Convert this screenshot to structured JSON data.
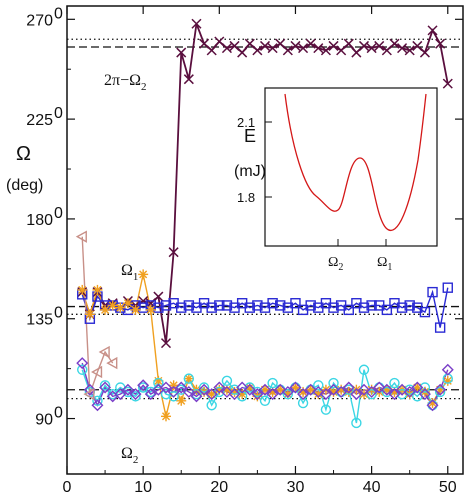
{
  "chart_data": {
    "type": "line",
    "xlim": [
      0,
      52
    ],
    "ylim": [
      65,
      276
    ],
    "x_ticks": [
      "0",
      "10",
      "20",
      "30",
      "40",
      "50"
    ],
    "y_ticks": [
      {
        "value": 90,
        "label": "90",
        "sup": "0"
      },
      {
        "value": 135,
        "label": "135",
        "sup": "0"
      },
      {
        "value": 180,
        "label": "180",
        "sup": "0"
      },
      {
        "value": 225,
        "label": "225",
        "sup": "0"
      },
      {
        "value": 270,
        "label": "270",
        "sup": "0"
      }
    ],
    "ylabel": {
      "symbol": "Ω",
      "unit": "(deg)"
    },
    "annotations": {
      "top": {
        "main": "2π−Ω",
        "sub": "2"
      },
      "omega1": {
        "main": "Ω",
        "sub": "1"
      },
      "omega2": {
        "main": "Ω",
        "sub": "2"
      }
    },
    "reference_lines": [
      {
        "y": 261,
        "style": "dotted"
      },
      {
        "y": 257.5,
        "style": "dashed"
      },
      {
        "y": 140.5,
        "style": "dashed"
      },
      {
        "y": 137,
        "style": "dotted"
      },
      {
        "y": 103,
        "style": "dashed"
      },
      {
        "y": 99,
        "style": "dotted"
      }
    ],
    "series": [
      {
        "color": "#5a0f3e",
        "marker": "x",
        "x": [
          2,
          3,
          4,
          5,
          6,
          7,
          8,
          9,
          10,
          11,
          12,
          13,
          14,
          15,
          16,
          17,
          18,
          19,
          20,
          21,
          22,
          23,
          24,
          25,
          26,
          27,
          28,
          29,
          30,
          31,
          32,
          33,
          34,
          35,
          36,
          37,
          38,
          39,
          40,
          41,
          42,
          43,
          44,
          45,
          46,
          47,
          48,
          49,
          50
        ],
        "y": [
          147,
          137,
          147,
          141,
          142,
          140,
          143,
          141,
          143,
          142,
          145,
          124,
          165,
          255,
          243,
          268,
          259,
          256,
          260,
          257,
          258,
          255,
          259,
          256,
          258,
          257,
          259,
          256,
          258,
          257,
          259,
          257,
          256,
          258,
          256,
          259,
          255,
          258,
          257,
          258,
          256,
          259,
          257,
          256,
          258,
          255,
          265,
          259,
          241
        ]
      },
      {
        "color": "#2a2ad4",
        "marker": "square",
        "x": [
          2,
          3,
          4,
          5,
          6,
          7,
          8,
          9,
          10,
          11,
          12,
          13,
          14,
          15,
          16,
          17,
          18,
          19,
          20,
          21,
          22,
          23,
          24,
          25,
          26,
          27,
          28,
          29,
          30,
          31,
          32,
          33,
          34,
          35,
          36,
          37,
          38,
          39,
          40,
          41,
          42,
          43,
          44,
          45,
          46,
          47,
          48,
          49,
          50
        ],
        "y": [
          146,
          135,
          145,
          141,
          141,
          140,
          139,
          141,
          140,
          141,
          140,
          141,
          142,
          140,
          141,
          140,
          142,
          140,
          141,
          141,
          140,
          142,
          140,
          141,
          140,
          142,
          141,
          140,
          142,
          139,
          141,
          140,
          142,
          140,
          141,
          139,
          142,
          140,
          141,
          141,
          139,
          142,
          140,
          141,
          140,
          138,
          147,
          131,
          149
        ]
      },
      {
        "color": "#f0a020",
        "marker": "asterisk",
        "x": [
          2,
          3,
          4,
          5,
          6,
          7,
          8,
          9,
          10,
          11,
          12,
          13,
          14,
          15,
          16,
          17,
          18,
          19,
          20,
          21,
          22,
          23,
          24,
          25,
          26,
          27,
          28,
          29,
          30,
          31,
          32,
          33,
          34,
          35,
          36,
          37,
          38,
          39,
          40,
          41,
          42,
          43,
          44,
          45,
          46,
          47,
          48,
          49,
          50
        ],
        "y": [
          148,
          137,
          148,
          139,
          141,
          140,
          142,
          139,
          155,
          139,
          107,
          91,
          105,
          98,
          108,
          103,
          102,
          101,
          103,
          103,
          102,
          101,
          104,
          100,
          103,
          102,
          103,
          101,
          104,
          102,
          103,
          101,
          103,
          102,
          103,
          102,
          103,
          101,
          103,
          102,
          103,
          102,
          103,
          101,
          104,
          102,
          97,
          103,
          107
        ]
      },
      {
        "color": "#3ad6e4",
        "marker": "circle",
        "x": [
          2,
          3,
          4,
          5,
          6,
          7,
          8,
          9,
          10,
          11,
          12,
          13,
          14,
          15,
          16,
          17,
          18,
          19,
          20,
          21,
          22,
          23,
          24,
          25,
          26,
          27,
          28,
          29,
          30,
          31,
          32,
          33,
          34,
          35,
          36,
          37,
          38,
          39,
          40,
          41,
          42,
          43,
          44,
          45,
          46,
          47,
          48,
          49,
          50
        ],
        "y": [
          112,
          102,
          98,
          105,
          101,
          104,
          102,
          100,
          104,
          102,
          106,
          101,
          100,
          103,
          108,
          101,
          104,
          96,
          102,
          107,
          103,
          100,
          104,
          102,
          98,
          106,
          103,
          101,
          104,
          97,
          103,
          105,
          94,
          106,
          102,
          103,
          88,
          112,
          101,
          104,
          102,
          106,
          101,
          103,
          100,
          104,
          96,
          102,
          108
        ]
      },
      {
        "color": "#7a3ec8",
        "marker": "diamond",
        "x": [
          2,
          3,
          4,
          5,
          6,
          7,
          8,
          9,
          10,
          11,
          12,
          13,
          14,
          15,
          16,
          17,
          18,
          19,
          20,
          21,
          22,
          23,
          24,
          25,
          26,
          27,
          28,
          29,
          30,
          31,
          32,
          33,
          34,
          35,
          36,
          37,
          38,
          39,
          40,
          41,
          42,
          43,
          44,
          45,
          46,
          47,
          48,
          49,
          50
        ],
        "y": [
          115,
          103,
          96,
          104,
          100,
          101,
          103,
          101,
          105,
          101,
          103,
          104,
          102,
          104,
          102,
          100,
          103,
          101,
          104,
          102,
          101,
          104,
          103,
          101,
          103,
          101,
          103,
          102,
          104,
          101,
          103,
          102,
          101,
          103,
          102,
          104,
          101,
          103,
          102,
          104,
          103,
          101,
          103,
          102,
          104,
          101,
          96,
          103,
          112
        ]
      },
      {
        "color": "#c89088",
        "marker": "triangle-left",
        "x": [
          2,
          3,
          4,
          5,
          6
        ],
        "y": [
          172,
          101,
          111,
          120,
          115
        ]
      }
    ],
    "inset": {
      "ylabel": "E",
      "yunit": "(mJ)",
      "y_ticks": [
        "1.8",
        "2.1"
      ],
      "x_ticks": [
        {
          "main": "Ω",
          "sub": "2"
        },
        {
          "main": "Ω",
          "sub": "1"
        }
      ],
      "color": "#d41818"
    }
  }
}
